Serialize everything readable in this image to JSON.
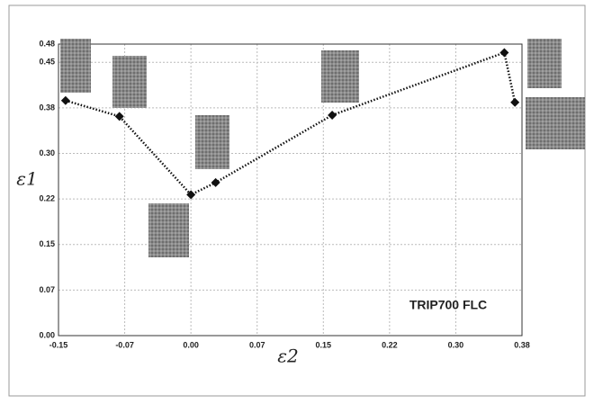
{
  "chart_data": {
    "type": "line",
    "x": [
      -0.142,
      -0.081,
      0.0,
      0.028,
      0.16,
      0.355,
      0.367
    ],
    "values": [
      0.387,
      0.361,
      0.232,
      0.252,
      0.363,
      0.466,
      0.384
    ],
    "color": "#111111",
    "xlabel": "ε2",
    "ylabel": "ε1",
    "annotation": "TRIP700 FLC",
    "xlim": [
      -0.15,
      0.375
    ],
    "xticks": [
      -0.15,
      {
        "value": -0.075,
        "label": "-0.07"
      },
      {
        "value": 0,
        "label": "0.00"
      },
      {
        "value": 0.075,
        "label": "0.07"
      },
      0.15,
      {
        "value": 0.225,
        "label": "0.22"
      },
      {
        "value": 0.3,
        "label": "0.30"
      },
      {
        "value": 0.375,
        "label": "0.38"
      }
    ],
    "ylim": [
      0,
      0.48
    ],
    "yticks": [
      {
        "value": 0,
        "label": "0.00"
      },
      {
        "value": 0.075,
        "label": "0.07"
      },
      0.15,
      {
        "value": 0.225,
        "label": "0.22"
      },
      {
        "value": 0.3,
        "label": "0.30"
      },
      {
        "value": 0.375,
        "label": "0.38"
      },
      0.45,
      0.48
    ],
    "grid": true
  }
}
